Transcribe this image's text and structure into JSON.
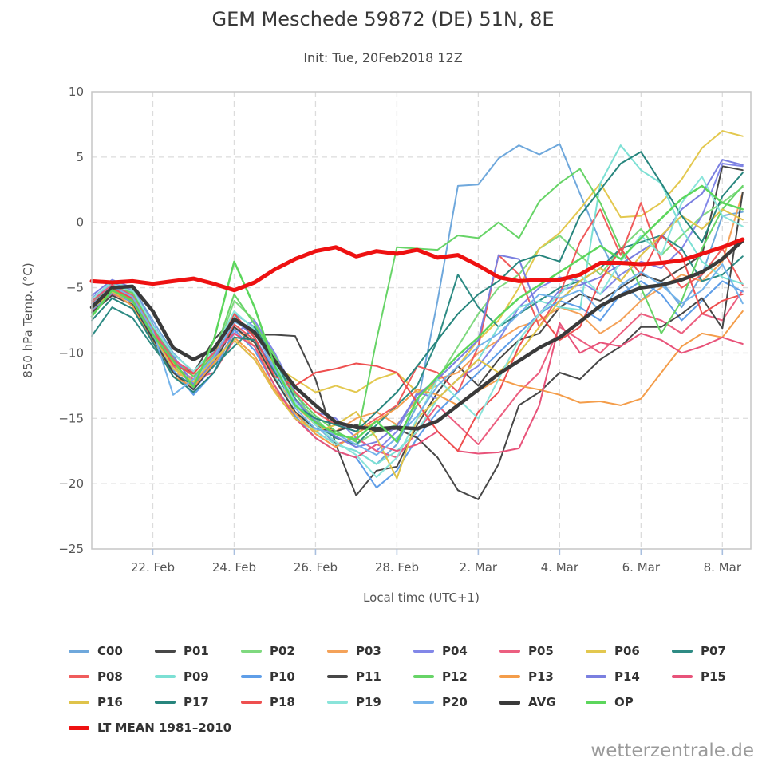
{
  "title": "GEM Meschede 59872 (DE) 51N, 8E",
  "subtitle": "Init: Tue, 20Feb2018 12Z",
  "watermark": "wetterzentrale.de",
  "chart_data": {
    "type": "line",
    "xlabel": "Local time (UTC+1)",
    "ylabel": "850 hPa Temp. (°C)",
    "xlim": [
      0,
      16.2
    ],
    "ylim": [
      -25,
      10
    ],
    "grid": "dashed",
    "legend_position": "bottom",
    "x_days_from_init": [
      0,
      0.5,
      1,
      1.5,
      2,
      2.5,
      3,
      3.5,
      4,
      4.5,
      5,
      5.5,
      6,
      6.5,
      7,
      7.5,
      8,
      8.5,
      9,
      9.5,
      10,
      10.5,
      11,
      11.5,
      12,
      12.5,
      13,
      13.5,
      14,
      14.5,
      15,
      15.5,
      16
    ],
    "xticks": [
      {
        "t": 1.5,
        "label": "22. Feb"
      },
      {
        "t": 3.5,
        "label": "24. Feb"
      },
      {
        "t": 5.5,
        "label": "26. Feb"
      },
      {
        "t": 7.5,
        "label": "28. Feb"
      },
      {
        "t": 9.5,
        "label": "2. Mar"
      },
      {
        "t": 11.5,
        "label": "4. Mar"
      },
      {
        "t": 13.5,
        "label": "6. Mar"
      },
      {
        "t": 15.5,
        "label": "8. Mar"
      }
    ],
    "yticks": [
      10,
      5,
      0,
      -5,
      -10,
      -15,
      -20,
      -25
    ],
    "series": [
      {
        "name": "C00",
        "color": "#6fa8dc",
        "width": 2,
        "values": [
          -6.0,
          -4.5,
          -5.0,
          -7.5,
          -10.0,
          -11.5,
          -10.0,
          -7.0,
          -8.0,
          -11.0,
          -13.0,
          -15.5,
          -17.0,
          -17.5,
          -18.5,
          -17.0,
          -14.0,
          -6.0,
          2.8,
          2.9,
          4.9,
          5.9,
          5.2,
          6.0,
          2.2,
          -1.5,
          -4.5,
          -6.0,
          -4.5,
          -6.5,
          -4.0,
          0.5,
          0.8
        ]
      },
      {
        "name": "P01",
        "color": "#474747",
        "width": 2,
        "values": [
          -6.2,
          -4.8,
          -5.5,
          -8.0,
          -10.8,
          -11.5,
          -9.0,
          -7.3,
          -8.6,
          -8.6,
          -8.7,
          -12.0,
          -17.0,
          -20.9,
          -19.0,
          -18.7,
          -15.5,
          -13.0,
          -11.0,
          -12.5,
          -10.5,
          -9.0,
          -8.5,
          -6.5,
          -5.5,
          -6.0,
          -5.0,
          -4.0,
          -4.5,
          -3.5,
          -2.5,
          4.3,
          4.0
        ]
      },
      {
        "name": "P02",
        "color": "#7fd97f",
        "width": 2,
        "values": [
          -7.0,
          -5.0,
          -5.8,
          -8.5,
          -11.0,
          -12.5,
          -10.5,
          -6.0,
          -7.5,
          -10.5,
          -13.5,
          -15.0,
          -16.5,
          -17.0,
          -16.0,
          -15.5,
          -14.0,
          -12.0,
          -9.5,
          -7.0,
          -5.0,
          -4.0,
          -2.0,
          -1.0,
          -2.5,
          -4.0,
          -2.0,
          -0.5,
          -2.5,
          -1.0,
          0.5,
          1.5,
          2.7
        ]
      },
      {
        "name": "P03",
        "color": "#f4a259",
        "width": 2,
        "values": [
          -6.5,
          -5.2,
          -6.2,
          -9.0,
          -11.5,
          -12.0,
          -10.0,
          -8.0,
          -9.5,
          -12.0,
          -14.0,
          -15.5,
          -16.0,
          -15.0,
          -14.5,
          -15.5,
          -13.5,
          -12.0,
          -11.5,
          -10.0,
          -9.0,
          -8.0,
          -7.5,
          -6.5,
          -7.0,
          -8.5,
          -7.5,
          -6.0,
          -5.0,
          -4.0,
          -4.5,
          -3.0,
          2.3
        ]
      },
      {
        "name": "P04",
        "color": "#8287e8",
        "width": 2,
        "values": [
          -5.8,
          -4.6,
          -5.2,
          -8.0,
          -10.5,
          -12.8,
          -11.0,
          -8.5,
          -7.5,
          -10.0,
          -13.0,
          -14.5,
          -15.0,
          -16.5,
          -17.5,
          -16.0,
          -13.0,
          -13.5,
          -12.0,
          -11.0,
          -9.0,
          -6.5,
          -5.0,
          -4.2,
          -4.5,
          -5.5,
          -4.0,
          -3.0,
          -3.5,
          -2.0,
          0.5,
          4.5,
          4.3
        ]
      },
      {
        "name": "P05",
        "color": "#ec5f80",
        "width": 2,
        "values": [
          -6.8,
          -5.5,
          -6.0,
          -8.8,
          -11.0,
          -12.0,
          -11.5,
          -9.0,
          -10.5,
          -13.0,
          -14.5,
          -16.0,
          -17.0,
          -16.5,
          -17.5,
          -18.0,
          -16.0,
          -14.0,
          -15.5,
          -17.0,
          -15.0,
          -13.0,
          -11.5,
          -8.0,
          -9.0,
          -10.0,
          -8.5,
          -7.0,
          -7.5,
          -8.5,
          -7.0,
          -7.5,
          -5.2
        ]
      },
      {
        "name": "P06",
        "color": "#e3c84f",
        "width": 2,
        "values": [
          -6.3,
          -5.0,
          -5.5,
          -8.3,
          -10.8,
          -12.5,
          -11.0,
          -7.5,
          -8.5,
          -11.0,
          -12.0,
          -13.0,
          -12.5,
          -13.0,
          -12.0,
          -11.5,
          -13.0,
          -12.5,
          -11.0,
          -9.0,
          -7.5,
          -5.0,
          -2.0,
          -0.8,
          1.0,
          3.0,
          0.4,
          0.5,
          1.5,
          3.3,
          5.7,
          7.0,
          6.6
        ]
      },
      {
        "name": "P07",
        "color": "#2e8b84",
        "width": 2,
        "values": [
          -8.7,
          -6.5,
          -7.3,
          -9.5,
          -11.5,
          -12.5,
          -11.0,
          -9.5,
          -8.0,
          -10.5,
          -13.5,
          -15.5,
          -16.5,
          -17.0,
          -15.5,
          -14.0,
          -12.5,
          -9.0,
          -4.0,
          -6.5,
          -8.0,
          -7.0,
          -6.0,
          -5.0,
          -4.5,
          -3.5,
          -2.0,
          -1.5,
          -1.0,
          -2.0,
          -4.5,
          -4.0,
          -2.6
        ]
      },
      {
        "name": "P08",
        "color": "#f05c5c",
        "width": 2,
        "values": [
          -6.4,
          -5.1,
          -5.9,
          -8.4,
          -10.6,
          -11.8,
          -10.5,
          -7.8,
          -9.0,
          -11.5,
          -13.0,
          -14.5,
          -15.5,
          -16.0,
          -15.0,
          -14.0,
          -11.0,
          -11.5,
          -13.0,
          -9.5,
          -2.5,
          -4.0,
          -8.0,
          -5.5,
          -1.5,
          1.0,
          -2.5,
          1.5,
          -3.0,
          -5.0,
          -4.0,
          -2.0,
          -4.8
        ]
      },
      {
        "name": "P09",
        "color": "#7ce0d4",
        "width": 2,
        "values": [
          -6.1,
          -4.7,
          -5.3,
          -8.1,
          -10.3,
          -12.3,
          -10.8,
          -7.2,
          -8.8,
          -11.8,
          -14.5,
          -16.0,
          -17.0,
          -17.5,
          -18.5,
          -17.5,
          -16.0,
          -13.5,
          -12.0,
          -10.5,
          -8.0,
          -6.5,
          -6.0,
          -6.5,
          -6.7,
          3.0,
          5.9,
          4.0,
          3.0,
          -0.5,
          -3.0,
          -4.2,
          -4.7
        ]
      },
      {
        "name": "P10",
        "color": "#5f9ee8",
        "width": 2,
        "values": [
          -6.7,
          -5.4,
          -6.1,
          -8.7,
          -11.3,
          -13.2,
          -11.5,
          -8.2,
          -9.8,
          -12.5,
          -14.8,
          -16.5,
          -17.5,
          -18.0,
          -20.3,
          -19.0,
          -16.5,
          -14.5,
          -13.0,
          -11.5,
          -10.0,
          -8.5,
          -7.0,
          -6.0,
          -6.5,
          -7.5,
          -5.5,
          -4.5,
          -5.5,
          -7.5,
          -6.0,
          -4.5,
          -5.3
        ]
      },
      {
        "name": "P11",
        "color": "#474747",
        "width": 2,
        "values": [
          -6.9,
          -5.6,
          -6.3,
          -8.9,
          -11.5,
          -12.8,
          -10.8,
          -8.0,
          -9.2,
          -12.0,
          -14.5,
          -15.8,
          -16.0,
          -15.5,
          -16.0,
          -15.8,
          -16.5,
          -18.0,
          -20.5,
          -21.2,
          -18.5,
          -14.0,
          -13.0,
          -11.5,
          -12.0,
          -10.5,
          -9.5,
          -8.0,
          -8.0,
          -7.0,
          -5.8,
          -8.1,
          2.3
        ]
      },
      {
        "name": "P12",
        "color": "#67d467",
        "width": 2,
        "values": [
          -6.0,
          -4.9,
          -5.4,
          -8.0,
          -10.4,
          -11.8,
          -10.2,
          -5.5,
          -7.8,
          -10.2,
          -13.2,
          -14.8,
          -16.0,
          -16.8,
          -9.0,
          -1.9,
          -2.0,
          -2.1,
          -1.0,
          -1.2,
          0.0,
          -1.2,
          1.6,
          3.0,
          4.1,
          1.5,
          -2.0,
          -5.0,
          -8.5,
          -6.0,
          -2.0,
          1.0,
          2.8
        ]
      },
      {
        "name": "P13",
        "color": "#f49d4a",
        "width": 2,
        "values": [
          -6.6,
          -5.3,
          -6.4,
          -9.2,
          -11.8,
          -12.6,
          -10.8,
          -8.8,
          -10.2,
          -12.8,
          -14.6,
          -16.2,
          -17.2,
          -16.2,
          -15.2,
          -14.2,
          -12.8,
          -13.2,
          -14.0,
          -12.9,
          -12.0,
          -12.5,
          -12.8,
          -13.2,
          -13.8,
          -13.7,
          -14.0,
          -13.5,
          -11.5,
          -9.5,
          -8.5,
          -8.8,
          -6.8
        ]
      },
      {
        "name": "P14",
        "color": "#7a7fe0",
        "width": 2,
        "values": [
          -5.6,
          -4.4,
          -5.0,
          -7.8,
          -10.2,
          -12.4,
          -10.6,
          -7.4,
          -8.8,
          -11.4,
          -13.6,
          -15.2,
          -16.4,
          -17.2,
          -16.8,
          -15.6,
          -13.2,
          -12.0,
          -10.5,
          -9.0,
          -2.5,
          -2.8,
          -7.0,
          -5.2,
          -4.8,
          -4.2,
          -3.2,
          -2.2,
          -1.2,
          1.0,
          2.2,
          4.8,
          4.4
        ]
      },
      {
        "name": "P15",
        "color": "#e8537a",
        "width": 2,
        "values": [
          -6.0,
          -4.8,
          -5.6,
          -8.2,
          -10.5,
          -11.5,
          -10.0,
          -8.5,
          -9.5,
          -12.5,
          -15.0,
          -16.5,
          -17.5,
          -18.0,
          -17.0,
          -17.5,
          -17.0,
          -16.0,
          -17.5,
          -17.7,
          -17.6,
          -17.3,
          -14.0,
          -7.7,
          -10.0,
          -9.2,
          -9.5,
          -8.5,
          -9.0,
          -10.0,
          -9.5,
          -8.8,
          -9.3
        ]
      },
      {
        "name": "P16",
        "color": "#dfc34a",
        "width": 2,
        "values": [
          -6.6,
          -5.3,
          -6.0,
          -8.6,
          -11.2,
          -12.2,
          -10.5,
          -9.0,
          -10.5,
          -13.0,
          -15.0,
          -16.0,
          -15.5,
          -14.5,
          -16.5,
          -19.6,
          -15.0,
          -13.5,
          -12.0,
          -10.5,
          -11.5,
          -10.0,
          -8.0,
          -6.0,
          -4.5,
          -3.5,
          -4.5,
          -2.5,
          -1.0,
          0.5,
          -0.5,
          1.0,
          0.2
        ]
      },
      {
        "name": "P17",
        "color": "#27857d",
        "width": 2,
        "values": [
          -7.5,
          -5.8,
          -6.6,
          -9.2,
          -11.8,
          -13.0,
          -11.5,
          -8.8,
          -9.0,
          -11.5,
          -14.0,
          -15.0,
          -15.5,
          -16.0,
          -14.5,
          -13.0,
          -11.0,
          -9.0,
          -7.0,
          -5.5,
          -4.5,
          -3.0,
          -2.5,
          -3.0,
          0.5,
          2.5,
          4.5,
          5.4,
          3.0,
          0.5,
          -1.5,
          2.0,
          3.8
        ]
      },
      {
        "name": "P18",
        "color": "#ee4f4f",
        "width": 2,
        "values": [
          -6.2,
          -5.0,
          -5.8,
          -8.5,
          -10.9,
          -11.6,
          -9.8,
          -7.0,
          -8.8,
          -11.8,
          -12.5,
          -11.5,
          -11.2,
          -10.8,
          -11.0,
          -11.5,
          -13.8,
          -16.0,
          -17.5,
          -14.5,
          -13.0,
          -9.5,
          -7.0,
          -9.0,
          -8.0,
          -4.5,
          -2.0,
          -4.0,
          -1.0,
          -2.5,
          -7.0,
          -6.0,
          -5.5
        ]
      },
      {
        "name": "P19",
        "color": "#8ae4da",
        "width": 2,
        "values": [
          -5.9,
          -4.5,
          -5.1,
          -7.9,
          -10.1,
          -11.4,
          -9.8,
          -6.8,
          -8.2,
          -10.8,
          -13.8,
          -15.5,
          -16.8,
          -17.8,
          -19.5,
          -18.0,
          -15.0,
          -12.0,
          -13.5,
          -15.0,
          -12.0,
          -9.0,
          -7.0,
          -5.5,
          -4.0,
          -5.5,
          -3.0,
          -1.0,
          -2.5,
          1.5,
          3.5,
          0.5,
          -0.3
        ]
      },
      {
        "name": "P20",
        "color": "#74b3ea",
        "width": 2,
        "values": [
          -6.3,
          -4.9,
          -5.7,
          -8.3,
          -13.2,
          -12.0,
          -10.3,
          -7.6,
          -8.4,
          -11.2,
          -14.2,
          -15.8,
          -16.2,
          -17.0,
          -17.8,
          -16.5,
          -14.8,
          -12.5,
          -11.0,
          -9.5,
          -8.5,
          -7.0,
          -5.5,
          -5.8,
          -5.2,
          -6.8,
          -4.8,
          -3.8,
          -4.8,
          -6.2,
          -5.2,
          -3.2,
          -6.2
        ]
      },
      {
        "name": "AVG",
        "color": "#3a3a3a",
        "width": 4.5,
        "values": [
          -6.5,
          -5.0,
          -4.9,
          -6.8,
          -9.6,
          -10.5,
          -9.7,
          -7.4,
          -8.4,
          -10.6,
          -12.6,
          -14.0,
          -15.3,
          -15.7,
          -15.8,
          -15.7,
          -15.8,
          -15.2,
          -14.0,
          -12.8,
          -11.6,
          -10.6,
          -9.6,
          -8.8,
          -7.6,
          -6.4,
          -5.6,
          -5.0,
          -4.8,
          -4.4,
          -3.8,
          -2.8,
          -1.4
        ]
      },
      {
        "name": "OP",
        "color": "#5cd65c",
        "width": 2.5,
        "values": [
          -7.2,
          -5.2,
          -6.0,
          -8.6,
          -10.6,
          -12.6,
          -9.0,
          -3.0,
          -6.5,
          -11.0,
          -14.0,
          -15.3,
          -16.2,
          -16.6,
          -15.2,
          -16.8,
          -13.5,
          -11.8,
          -10.2,
          -8.8,
          -7.2,
          -5.8,
          -4.8,
          -3.8,
          -2.8,
          -1.8,
          -2.8,
          -1.2,
          0.3,
          1.8,
          2.8,
          1.5,
          1.0
        ]
      },
      {
        "name": "LT MEAN 1981–2010",
        "color": "#ee1111",
        "width": 5,
        "values": [
          -4.5,
          -4.6,
          -4.5,
          -4.7,
          -4.5,
          -4.3,
          -4.7,
          -5.2,
          -4.6,
          -3.6,
          -2.8,
          -2.2,
          -1.9,
          -2.6,
          -2.2,
          -2.4,
          -2.1,
          -2.7,
          -2.5,
          -3.3,
          -4.2,
          -4.5,
          -4.4,
          -4.4,
          -4.0,
          -3.1,
          -3.1,
          -3.2,
          -3.1,
          -2.9,
          -2.4,
          -1.9,
          -1.3
        ]
      }
    ]
  },
  "legend": {
    "items_per_row": 8
  }
}
